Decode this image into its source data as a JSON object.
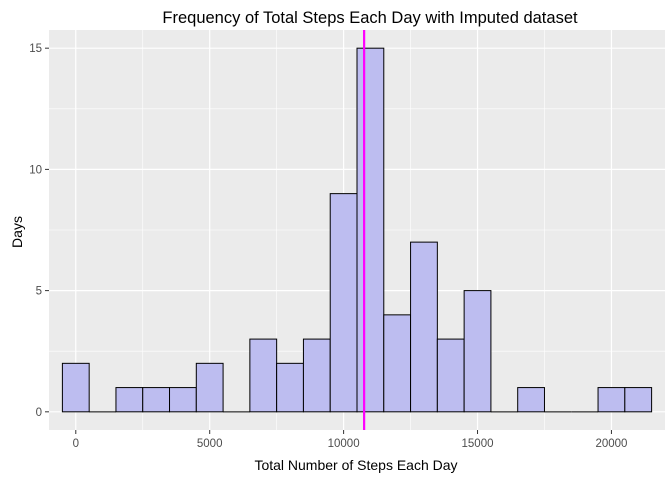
{
  "chart_data": {
    "type": "bar",
    "subtype": "histogram",
    "title": "Frequency of Total Steps Each Day with Imputed dataset",
    "xlabel": "Total Number of Steps Each Day",
    "ylabel": "Days",
    "xlim": [
      -1000,
      22000
    ],
    "ylim": [
      -0.75,
      15.75
    ],
    "x_ticks": [
      0,
      5000,
      10000,
      15000,
      20000
    ],
    "y_ticks": [
      0,
      5,
      10,
      15
    ],
    "grid": true,
    "legend": "none",
    "bin_width": 1000,
    "bins": [
      {
        "start": -500,
        "end": 500,
        "count": 2
      },
      {
        "start": 500,
        "end": 1500,
        "count": 0
      },
      {
        "start": 1500,
        "end": 2500,
        "count": 1
      },
      {
        "start": 2500,
        "end": 3500,
        "count": 1
      },
      {
        "start": 3500,
        "end": 4500,
        "count": 1
      },
      {
        "start": 4500,
        "end": 5500,
        "count": 2
      },
      {
        "start": 5500,
        "end": 6500,
        "count": 0
      },
      {
        "start": 6500,
        "end": 7500,
        "count": 3
      },
      {
        "start": 7500,
        "end": 8500,
        "count": 2
      },
      {
        "start": 8500,
        "end": 9500,
        "count": 3
      },
      {
        "start": 9500,
        "end": 10500,
        "count": 9
      },
      {
        "start": 10500,
        "end": 11500,
        "count": 15
      },
      {
        "start": 11500,
        "end": 12500,
        "count": 4
      },
      {
        "start": 12500,
        "end": 13500,
        "count": 7
      },
      {
        "start": 13500,
        "end": 14500,
        "count": 3
      },
      {
        "start": 14500,
        "end": 15500,
        "count": 5
      },
      {
        "start": 15500,
        "end": 16500,
        "count": 0
      },
      {
        "start": 16500,
        "end": 17500,
        "count": 1
      },
      {
        "start": 17500,
        "end": 18500,
        "count": 0
      },
      {
        "start": 18500,
        "end": 19500,
        "count": 0
      },
      {
        "start": 19500,
        "end": 20500,
        "count": 1
      },
      {
        "start": 20500,
        "end": 21500,
        "count": 1
      }
    ],
    "mean_line": {
      "x": 10766
    },
    "colors": {
      "panel_background": "#ebebeb",
      "grid": "#ffffff",
      "bar_fill": "#bdbdf0",
      "bar_outline": "#000000",
      "mean_line": "#ff00ff",
      "tick_text": "#4d4d4d"
    }
  }
}
